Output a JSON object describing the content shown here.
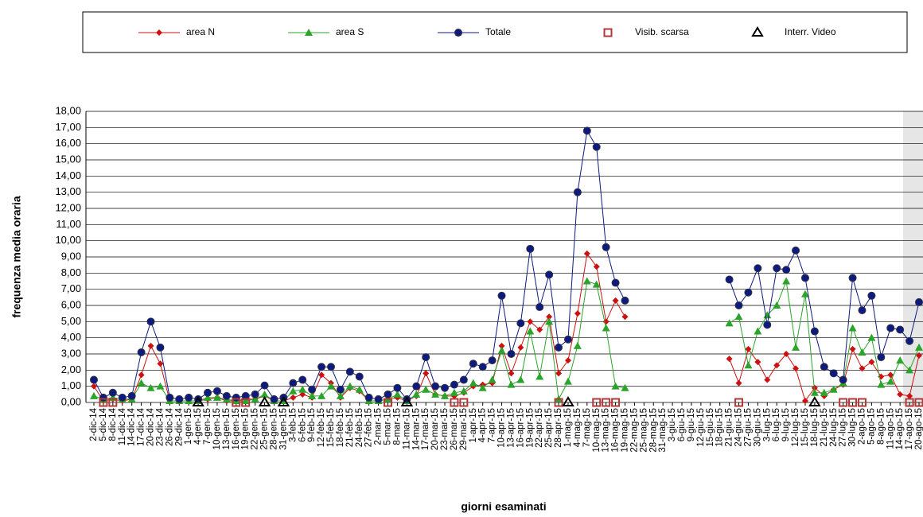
{
  "chart_data": {
    "type": "line",
    "y_label": "frequenza media oraria",
    "x_label": "giorni esaminati",
    "categories": [
      "2-dic-14",
      "5-dic-14",
      "8-dic-14",
      "11-dic-14",
      "14-dic-14",
      "17-dic-14",
      "20-dic-14",
      "23-dic-14",
      "26-dic-14",
      "29-dic-14",
      "1-gen-15",
      "4-gen-15",
      "7-gen-15",
      "10-gen-15",
      "13-gen-15",
      "16-gen-15",
      "19-gen-15",
      "22-gen-15",
      "25-gen-15",
      "28-gen-15",
      "31-gen-15",
      "3-feb-15",
      "6-feb-15",
      "9-feb-15",
      "12-feb-15",
      "15-feb-15",
      "18-feb-15",
      "21-feb-15",
      "24-feb-15",
      "27-feb-15",
      "2-mar-15",
      "5-mar-15",
      "8-mar-15",
      "11-mar-15",
      "14-mar-15",
      "17-mar-15",
      "20-mar-15",
      "23-mar-15",
      "26-mar-15",
      "29-mar-15",
      "1-apr-15",
      "4-apr-15",
      "7-apr-15",
      "10-apr-15",
      "13-apr-15",
      "16-apr-15",
      "19-apr-15",
      "22-apr-15",
      "25-apr-15",
      "28-apr-15",
      "1-mag-15",
      "4-mag-15",
      "7-mag-15",
      "10-mag-15",
      "13-mag-15",
      "16-mag-15",
      "19-mag-15",
      "22-mag-15",
      "25-mag-15",
      "28-mag-15",
      "31-mag-15",
      "3-giu-15",
      "6-giu-15",
      "9-giu-15",
      "12-giu-15",
      "15-giu-15",
      "18-giu-15",
      "21-giu-15",
      "24-giu-15",
      "27-giu-15",
      "30-giu-15",
      "3-lug-15",
      "6-lug-15",
      "9-lug-15",
      "12-lug-15",
      "15-lug-15",
      "18-lug-15",
      "21-lug-15",
      "24-lug-15",
      "27-lug-15",
      "30-lug-15",
      "2-ago-15",
      "5-ago-15",
      "8-ago-15",
      "11-ago-15",
      "14-ago-15",
      "17-ago-15",
      "20-ago-15"
    ],
    "series": [
      {
        "name": "area N",
        "color": "#cc1111",
        "marker": "diamond",
        "line": true,
        "values": [
          1.0,
          0.1,
          0.2,
          0.1,
          0.2,
          1.7,
          3.5,
          2.4,
          0.1,
          0.1,
          0.1,
          0.1,
          0.2,
          0.3,
          0.1,
          0.1,
          0.2,
          0.2,
          0.4,
          0.1,
          0.1,
          0.3,
          0.5,
          0.3,
          1.7,
          1.2,
          0.3,
          0.9,
          0.7,
          0.1,
          0.1,
          0.2,
          0.3,
          0.1,
          0.4,
          1.8,
          0.5,
          0.4,
          0.4,
          0.6,
          1.0,
          1.1,
          1.2,
          3.5,
          1.8,
          3.4,
          5.0,
          4.5,
          5.3,
          1.8,
          2.6,
          5.5,
          9.2,
          8.4,
          5.0,
          6.3,
          5.3,
          null,
          null,
          null,
          null,
          null,
          null,
          null,
          null,
          null,
          null,
          2.7,
          1.2,
          3.3,
          2.5,
          1.4,
          2.3,
          3.0,
          2.1,
          0.1,
          0.9,
          0.4,
          0.8,
          1.1,
          3.3,
          2.1,
          2.5,
          1.6,
          1.7,
          0.5,
          0.4,
          2.9
        ]
      },
      {
        "name": "area S",
        "color": "#2aa52a",
        "marker": "triangle",
        "line": true,
        "values": [
          0.4,
          0.2,
          0.3,
          0.2,
          0.2,
          1.2,
          0.9,
          1.0,
          0.1,
          0.1,
          0.1,
          0.1,
          0.3,
          0.3,
          0.2,
          0.1,
          0.1,
          0.2,
          0.5,
          0.1,
          0.1,
          0.7,
          0.8,
          0.4,
          0.4,
          1.0,
          0.4,
          1.0,
          0.8,
          0.1,
          0.1,
          0.2,
          0.5,
          0.1,
          0.5,
          0.8,
          0.5,
          0.4,
          0.6,
          0.7,
          1.2,
          0.9,
          1.4,
          3.2,
          1.1,
          1.4,
          4.4,
          1.6,
          5.0,
          0.2,
          1.3,
          3.5,
          7.5,
          7.3,
          4.6,
          1.0,
          0.9,
          null,
          null,
          null,
          null,
          null,
          null,
          null,
          null,
          null,
          null,
          4.9,
          5.3,
          2.3,
          4.4,
          5.4,
          6.0,
          7.5,
          3.4,
          6.7,
          0.6,
          0.6,
          0.8,
          1.2,
          4.6,
          3.1,
          4.0,
          1.1,
          1.3,
          2.6,
          2.0,
          3.4
        ]
      },
      {
        "name": "Totale",
        "color": "#0d1a80",
        "marker": "circle",
        "line": true,
        "values": [
          1.4,
          0.3,
          0.6,
          0.3,
          0.4,
          3.1,
          5.0,
          3.4,
          0.3,
          0.2,
          0.3,
          0.2,
          0.6,
          0.7,
          0.4,
          0.3,
          0.4,
          0.5,
          1.05,
          0.2,
          0.3,
          1.2,
          1.4,
          0.8,
          2.2,
          2.2,
          0.8,
          1.9,
          1.6,
          0.3,
          0.2,
          0.5,
          0.9,
          0.2,
          1.0,
          2.8,
          1.0,
          0.9,
          1.1,
          1.4,
          2.4,
          2.2,
          2.6,
          6.6,
          3.0,
          4.9,
          9.5,
          5.9,
          7.9,
          3.4,
          3.9,
          13.0,
          16.8,
          15.8,
          9.6,
          7.4,
          6.3,
          null,
          null,
          null,
          null,
          null,
          null,
          null,
          null,
          null,
          null,
          7.6,
          6.0,
          6.8,
          8.3,
          4.8,
          8.3,
          8.2,
          9.4,
          7.7,
          4.4,
          2.2,
          1.8,
          1.4,
          7.7,
          5.7,
          6.6,
          2.8,
          4.6,
          4.5,
          3.8,
          6.2
        ]
      },
      {
        "name": "Visib. scarsa",
        "color": "#b03a3a",
        "marker": "square-open",
        "line": false,
        "values": [
          null,
          0,
          0,
          null,
          null,
          null,
          null,
          null,
          null,
          null,
          null,
          null,
          null,
          null,
          null,
          0,
          0,
          null,
          null,
          null,
          null,
          null,
          null,
          null,
          null,
          null,
          null,
          null,
          null,
          null,
          null,
          0,
          null,
          null,
          null,
          null,
          null,
          null,
          0,
          0,
          null,
          null,
          null,
          null,
          null,
          null,
          null,
          null,
          null,
          0,
          null,
          null,
          null,
          0,
          0,
          0,
          null,
          null,
          null,
          null,
          null,
          null,
          null,
          null,
          null,
          null,
          null,
          null,
          0,
          null,
          null,
          null,
          null,
          null,
          null,
          null,
          null,
          null,
          null,
          0,
          0,
          0,
          null,
          null,
          null,
          null,
          0,
          0
        ]
      },
      {
        "name": "Interr. Video",
        "color": "#000000",
        "marker": "triangle-open",
        "line": false,
        "values": [
          null,
          null,
          null,
          null,
          null,
          null,
          null,
          null,
          null,
          null,
          null,
          0,
          null,
          null,
          null,
          null,
          null,
          null,
          0,
          null,
          0,
          null,
          null,
          null,
          null,
          null,
          null,
          null,
          null,
          null,
          null,
          null,
          null,
          0,
          null,
          null,
          null,
          null,
          null,
          null,
          null,
          null,
          null,
          null,
          null,
          null,
          null,
          null,
          null,
          null,
          0,
          null,
          null,
          null,
          null,
          null,
          null,
          null,
          null,
          null,
          null,
          null,
          null,
          null,
          null,
          null,
          null,
          null,
          null,
          null,
          null,
          null,
          null,
          null,
          null,
          null,
          0,
          null,
          null,
          null,
          null,
          null,
          null,
          null,
          null,
          null,
          null,
          null
        ]
      }
    ],
    "ylim": [
      0,
      18
    ],
    "yticks": [
      {
        "value": 0,
        "label": "0,00"
      },
      {
        "value": 1,
        "label": "1,00"
      },
      {
        "value": 2,
        "label": "2,00"
      },
      {
        "value": 3,
        "label": "3,00"
      },
      {
        "value": 4,
        "label": "4,00"
      },
      {
        "value": 5,
        "label": "5,00"
      },
      {
        "value": 6,
        "label": "6,00"
      },
      {
        "value": 7,
        "label": "7,00"
      },
      {
        "value": 8,
        "label": "8,00"
      },
      {
        "value": 9,
        "label": "9,00"
      },
      {
        "value": 10,
        "label": "10,00"
      },
      {
        "value": 11,
        "label": "11,00"
      },
      {
        "value": 12,
        "label": "12,00"
      },
      {
        "value": 13,
        "label": "13,00"
      },
      {
        "value": 14,
        "label": "14,00"
      },
      {
        "value": 15,
        "label": "15,00"
      },
      {
        "value": 16,
        "label": "16,00"
      },
      {
        "value": 17,
        "label": "17,00"
      },
      {
        "value": 18,
        "label": "18,00"
      }
    ],
    "grid": true
  }
}
